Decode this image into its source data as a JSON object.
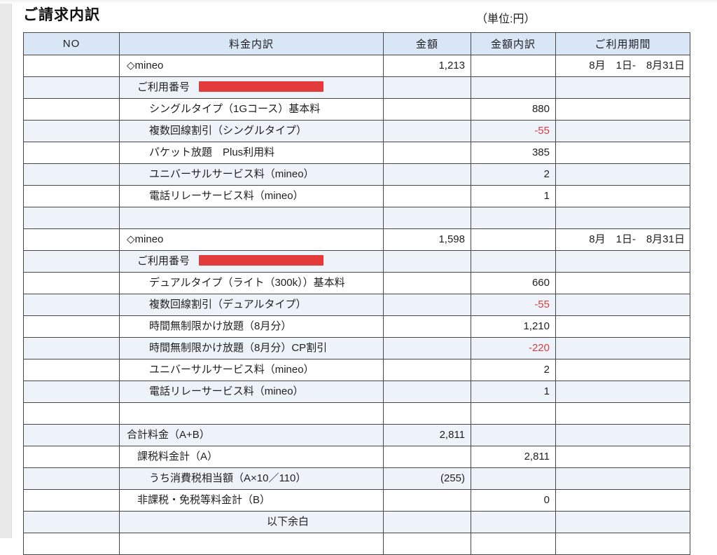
{
  "page": {
    "title": "ご請求内訳",
    "unit_label": "（単位:円）"
  },
  "colors": {
    "header_bg": "#d9e6f5",
    "alt_row_bg": "#eef3f9",
    "border": "#474747",
    "negative_value": "#d93b40",
    "redaction_box": "#e33b3b",
    "left_strip": "#e9e9e9"
  },
  "table": {
    "headers": [
      "NO",
      "料金内訳",
      "金額",
      "金額内訳",
      "ご利用期間"
    ],
    "rows": [
      {
        "label": "◇mineo",
        "indent": 0,
        "amount": "1,213",
        "amount_detail": "",
        "period": "8月　1日-　8月31日"
      },
      {
        "label": "ご利用番号",
        "indent": 1,
        "redacted": true
      },
      {
        "label": "シングルタイプ（1Gコース）基本料",
        "indent": 2,
        "amount_detail": "880"
      },
      {
        "label": "複数回線割引（シングルタイプ）",
        "indent": 2,
        "amount_detail": "-55",
        "negative": true
      },
      {
        "label": "パケット放題　Plus利用料",
        "indent": 2,
        "amount_detail": "385"
      },
      {
        "label": "ユニバーサルサービス料（mineo）",
        "indent": 2,
        "amount_detail": "2"
      },
      {
        "label": "電話リレーサービス料（mineo）",
        "indent": 2,
        "amount_detail": "1"
      },
      {
        "label": "",
        "indent": 0
      },
      {
        "label": "◇mineo",
        "indent": 0,
        "amount": "1,598",
        "amount_detail": "",
        "period": "8月　1日-　8月31日"
      },
      {
        "label": "ご利用番号",
        "indent": 1,
        "redacted": true
      },
      {
        "label": "デュアルタイプ（ライト（300k））基本料",
        "indent": 2,
        "amount_detail": "660"
      },
      {
        "label": "複数回線割引（デュアルタイプ）",
        "indent": 2,
        "amount_detail": "-55",
        "negative": true
      },
      {
        "label": "時間無制限かけ放題（8月分）",
        "indent": 2,
        "amount_detail": "1,210"
      },
      {
        "label": "時間無制限かけ放題（8月分）CP割引",
        "indent": 2,
        "amount_detail": "-220",
        "negative": true
      },
      {
        "label": "ユニバーサルサービス料（mineo）",
        "indent": 2,
        "amount_detail": "2"
      },
      {
        "label": "電話リレーサービス料（mineo）",
        "indent": 2,
        "amount_detail": "1"
      },
      {
        "label": "",
        "indent": 0
      },
      {
        "label": "合計料金（A+B）",
        "indent": 0,
        "amount": "2,811"
      },
      {
        "label": "課税料金計（A）",
        "indent": 1,
        "amount_detail": "2,811"
      },
      {
        "label": "うち消費税相当額（A×10／110）",
        "indent": 2,
        "amount": "(255)"
      },
      {
        "label": "非課税・免税等料金計（B）",
        "indent": 1,
        "amount_detail": "0"
      },
      {
        "label": "以下余白",
        "indent": 2,
        "center": true
      },
      {
        "label": "",
        "indent": 0
      }
    ]
  }
}
